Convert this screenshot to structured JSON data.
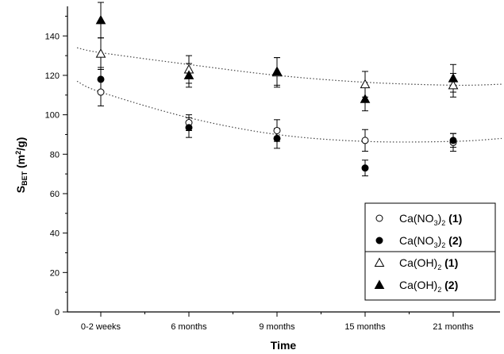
{
  "chart_data": {
    "type": "scatter",
    "xlabel": "Time",
    "ylabel": {
      "main": "S",
      "sub": "BET",
      "unit_pre": " (m",
      "unit_sup": "2",
      "unit_post": "/g)"
    },
    "categories": [
      "0-2 weeks",
      "6 months",
      "9 months",
      "15 months",
      "21 months"
    ],
    "ylim": [
      0,
      155
    ],
    "yticks": [
      0,
      20,
      40,
      60,
      80,
      100,
      120,
      140
    ],
    "grid": false,
    "legend_position": "bottom-right",
    "series": [
      {
        "name": "Ca(NO3)2 (1)",
        "marker": "open-circle",
        "values": [
          111.5,
          96,
          92,
          87,
          86
        ],
        "errors": [
          7,
          4,
          5.5,
          5.5,
          4.5
        ]
      },
      {
        "name": "Ca(NO3)2 (2)",
        "marker": "filled-circle",
        "values": [
          118,
          93.5,
          88,
          73,
          87
        ],
        "errors": [
          6,
          5,
          5,
          4,
          3.5
        ]
      },
      {
        "name": "Ca(OH)2 (1)",
        "marker": "open-triangle",
        "values": [
          131,
          123,
          121.5,
          115.5,
          115
        ],
        "errors": [
          8,
          7,
          7.5,
          6.5,
          6
        ]
      },
      {
        "name": "Ca(OH)2 (2)",
        "marker": "filled-triangle",
        "values": [
          148,
          120,
          122,
          108,
          118.5
        ],
        "errors": [
          9,
          6,
          7,
          6,
          7
        ]
      }
    ],
    "trendlines": [
      {
        "style": "dotted",
        "x": [
          -0.27,
          0,
          1,
          2,
          3,
          4,
          4.55
        ],
        "y": [
          117,
          111.5,
          98.5,
          90,
          86.5,
          86.5,
          88
        ]
      },
      {
        "style": "dotted",
        "x": [
          -0.27,
          0,
          1,
          2,
          3,
          4,
          4.55
        ],
        "y": [
          134,
          131.5,
          125.5,
          120,
          116.5,
          115,
          115.5
        ]
      }
    ],
    "legend": [
      {
        "base": "Ca(NO",
        "sub1": "3",
        "mid": ")",
        "sub2": "2",
        "tag": " (1)",
        "marker": "open-circle"
      },
      {
        "base": "Ca(NO",
        "sub1": "3",
        "mid": ")",
        "sub2": "2",
        "tag": " (2)",
        "marker": "filled-circle"
      },
      {
        "base": "Ca(OH)",
        "sub1": "",
        "mid": "",
        "sub2": "2",
        "tag": " (1)",
        "marker": "open-triangle"
      },
      {
        "base": "Ca(OH)",
        "sub1": "",
        "mid": "",
        "sub2": "2",
        "tag": " (2)",
        "marker": "filled-triangle"
      }
    ]
  }
}
